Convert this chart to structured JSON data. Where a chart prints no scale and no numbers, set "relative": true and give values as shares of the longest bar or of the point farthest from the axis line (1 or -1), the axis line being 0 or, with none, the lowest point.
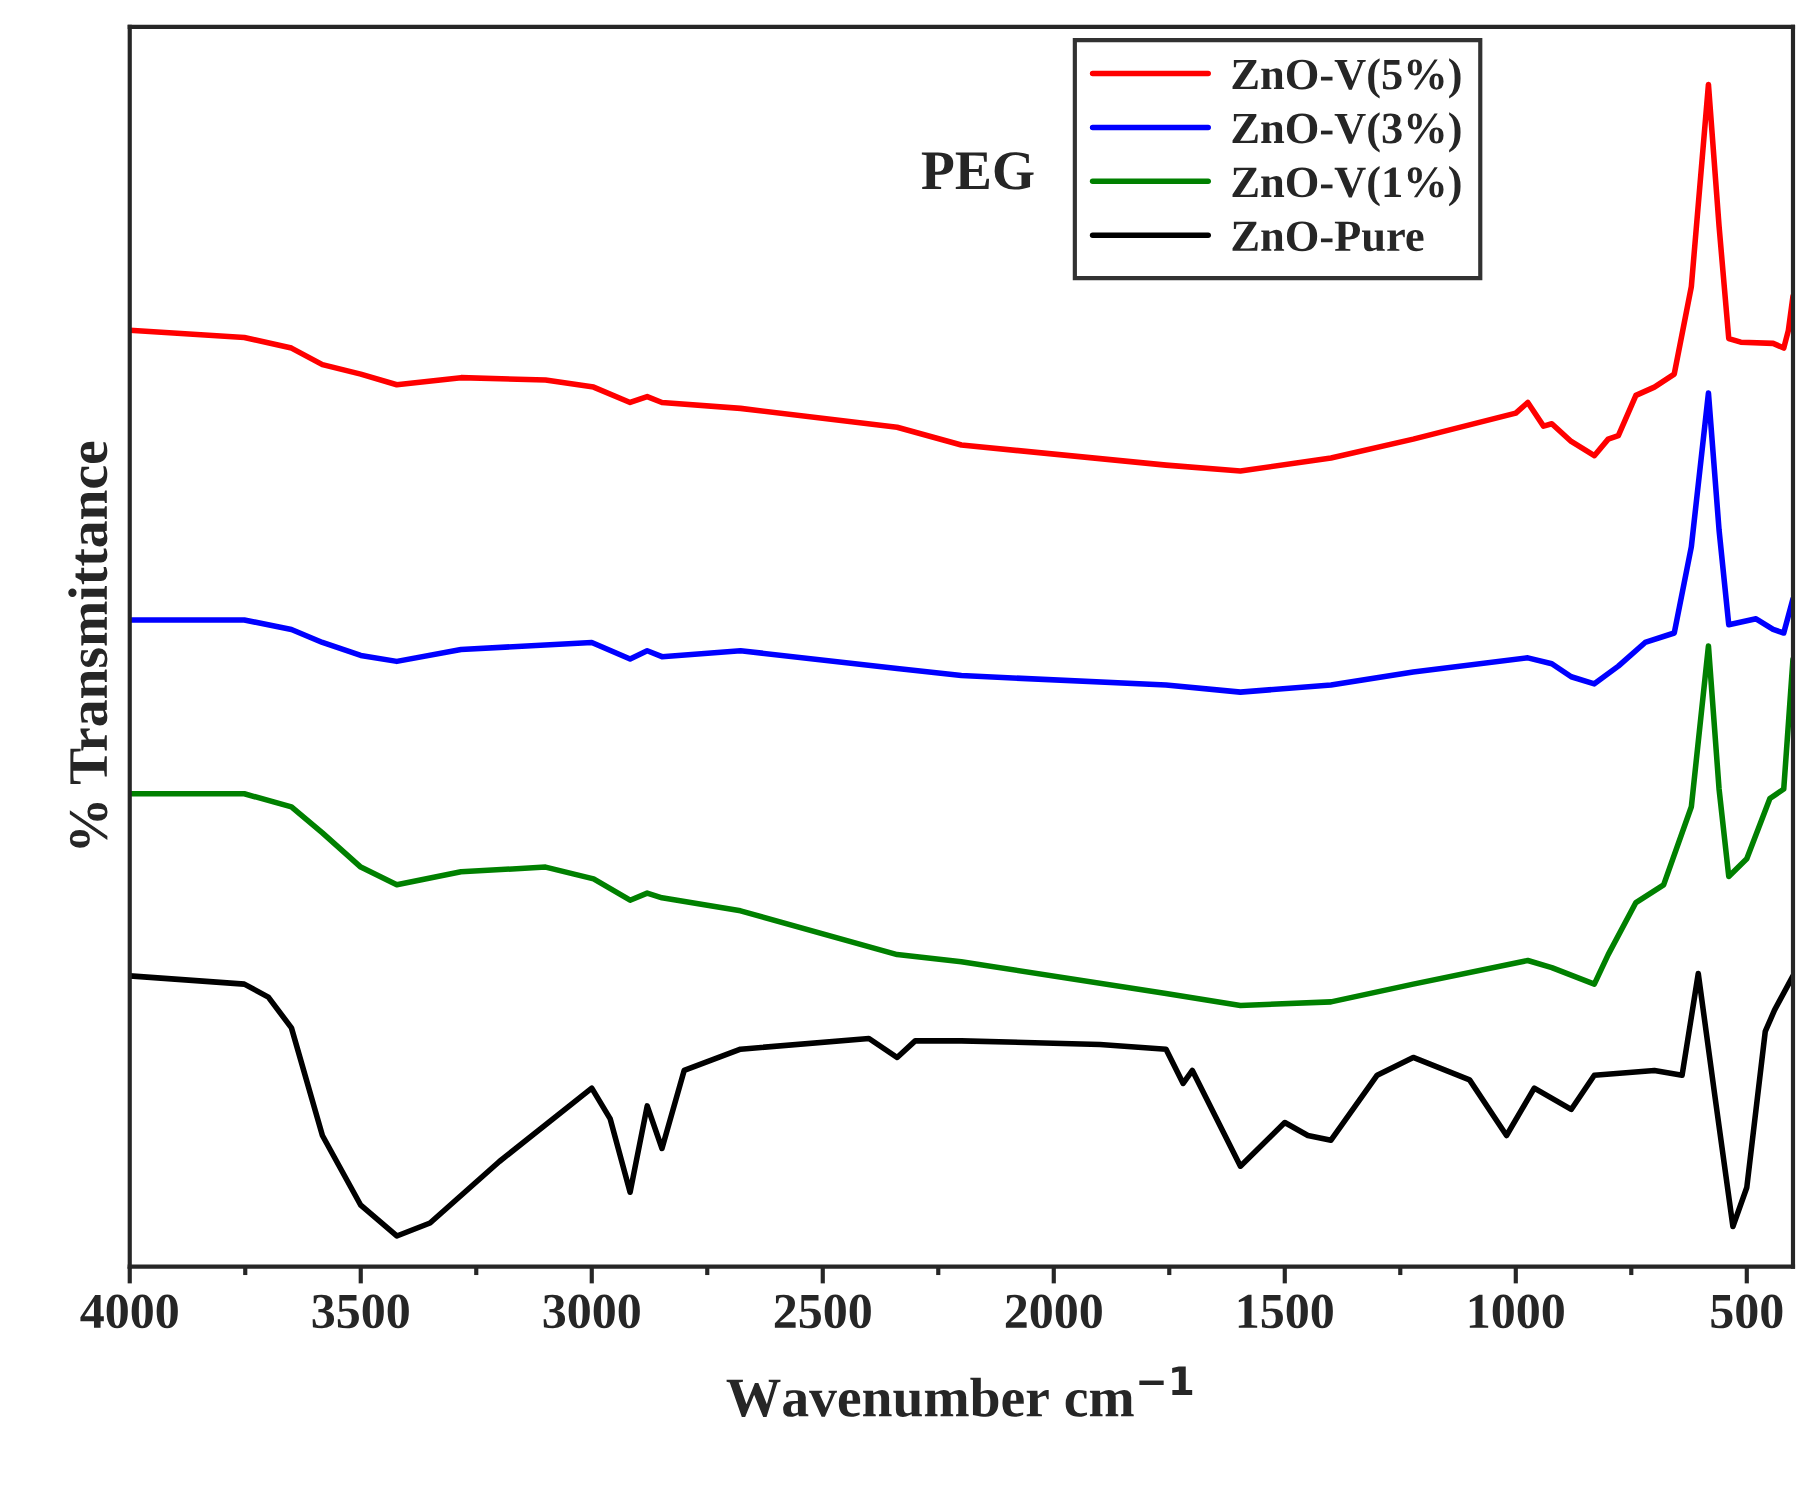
{
  "chart_data": {
    "type": "line",
    "relative": true,
    "xlabel": "Wavenumber cm$^{−1}$",
    "ylabel": "% Transmittance",
    "annotations": [
      "PEG"
    ],
    "xlim": [
      4000,
      400
    ],
    "xticks": [
      4000,
      3500,
      3000,
      2500,
      2000,
      1500,
      1000,
      500
    ],
    "tick_labels": "x",
    "legend": "top right",
    "grid": false,
    "marker": "none",
    "line_style": "solid",
    "series": [
      {
        "name": "ZnO-V(5%)",
        "color": "#ff0000",
        "x": [
          4000,
          3752,
          3650,
          3583,
          3500,
          3422,
          3283,
          3100,
          2996,
          2917,
          2880,
          2848,
          2678,
          2339,
          2200,
          1757,
          1596,
          1400,
          1222,
          1000,
          974,
          940,
          922,
          880,
          830,
          800,
          778,
          740,
          700,
          657,
          620,
          583,
          560,
          539,
          513,
          443,
          420,
          410,
          400
        ],
        "values": [
          0.792,
          0.786,
          0.777,
          0.763,
          0.755,
          0.746,
          0.752,
          0.75,
          0.744,
          0.731,
          0.736,
          0.731,
          0.726,
          0.71,
          0.695,
          0.678,
          0.673,
          0.684,
          0.7,
          0.722,
          0.731,
          0.711,
          0.713,
          0.698,
          0.686,
          0.7,
          0.703,
          0.737,
          0.744,
          0.755,
          0.829,
          1.0,
          0.88,
          0.785,
          0.782,
          0.781,
          0.777,
          0.792,
          0.821
        ]
      },
      {
        "name": "ZnO-V(3%)",
        "color": "#0000ff",
        "x": [
          4000,
          3752,
          3650,
          3583,
          3500,
          3422,
          3283,
          3000,
          2917,
          2880,
          2848,
          2678,
          2339,
          2200,
          1757,
          1596,
          1400,
          1222,
          974,
          922,
          880,
          830,
          778,
          720,
          657,
          620,
          583,
          560,
          539,
          480,
          443,
          420,
          400
        ],
        "values": [
          0.547,
          0.547,
          0.539,
          0.528,
          0.517,
          0.512,
          0.522,
          0.528,
          0.514,
          0.521,
          0.516,
          0.521,
          0.506,
          0.5,
          0.492,
          0.486,
          0.492,
          0.503,
          0.515,
          0.51,
          0.499,
          0.493,
          0.508,
          0.528,
          0.536,
          0.609,
          0.739,
          0.623,
          0.543,
          0.548,
          0.539,
          0.536,
          0.565
        ]
      },
      {
        "name": "ZnO-V(1%)",
        "color": "#008000",
        "x": [
          4000,
          3752,
          3650,
          3583,
          3500,
          3422,
          3283,
          3100,
          2996,
          2917,
          2880,
          2848,
          2678,
          2339,
          2200,
          1757,
          1596,
          1400,
          1222,
          974,
          922,
          830,
          800,
          740,
          680,
          620,
          583,
          560,
          539,
          500,
          450,
          420,
          400
        ],
        "values": [
          0.4,
          0.4,
          0.389,
          0.367,
          0.338,
          0.323,
          0.334,
          0.338,
          0.328,
          0.31,
          0.316,
          0.312,
          0.301,
          0.264,
          0.258,
          0.231,
          0.221,
          0.224,
          0.239,
          0.259,
          0.253,
          0.239,
          0.264,
          0.308,
          0.323,
          0.389,
          0.525,
          0.404,
          0.33,
          0.345,
          0.396,
          0.404,
          0.514
        ]
      },
      {
        "name": "ZnO-Pure",
        "color": "#000000",
        "x": [
          4000,
          3752,
          3700,
          3650,
          3583,
          3500,
          3422,
          3350,
          3200,
          3000,
          2960,
          2917,
          2880,
          2848,
          2800,
          2678,
          2400,
          2339,
          2300,
          2200,
          1900,
          1757,
          1720,
          1700,
          1596,
          1500,
          1450,
          1400,
          1300,
          1222,
          1100,
          1020,
          960,
          880,
          830,
          700,
          640,
          605,
          570,
          530,
          500,
          460,
          440,
          400
        ],
        "values": [
          0.246,
          0.239,
          0.228,
          0.202,
          0.111,
          0.052,
          0.026,
          0.037,
          0.089,
          0.151,
          0.125,
          0.063,
          0.136,
          0.1,
          0.166,
          0.184,
          0.193,
          0.177,
          0.191,
          0.191,
          0.188,
          0.184,
          0.155,
          0.166,
          0.085,
          0.122,
          0.111,
          0.107,
          0.162,
          0.177,
          0.158,
          0.111,
          0.151,
          0.133,
          0.162,
          0.166,
          0.162,
          0.248,
          0.147,
          0.034,
          0.067,
          0.199,
          0.217,
          0.246
        ]
      }
    ]
  }
}
